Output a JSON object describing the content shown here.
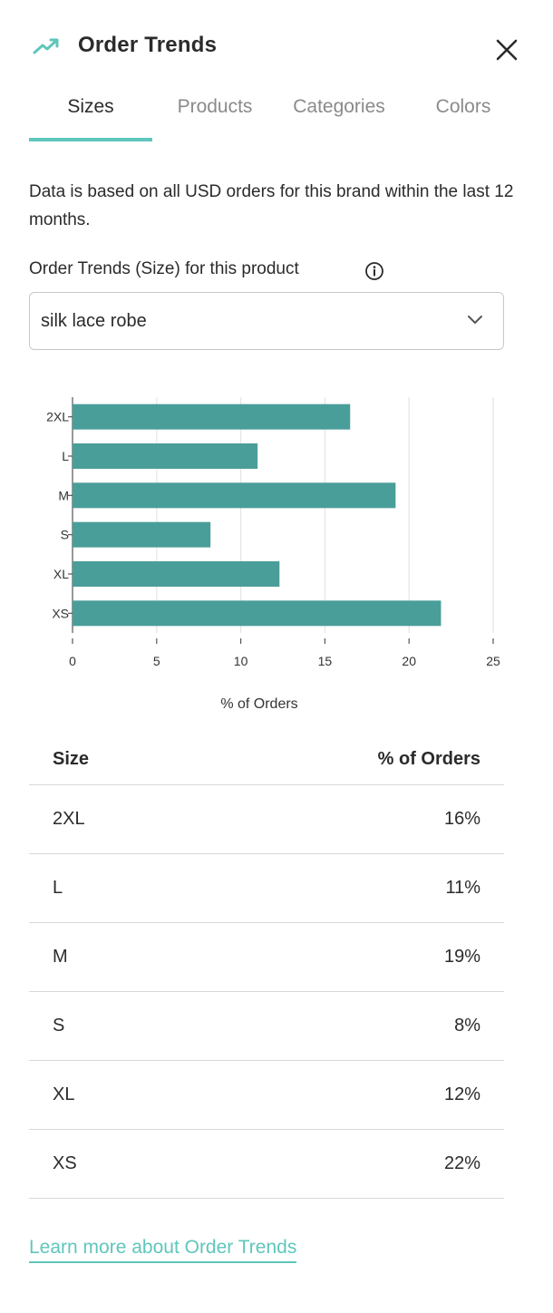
{
  "header": {
    "title": "Order Trends",
    "icon": "trending-up-icon",
    "close_icon": "close-icon"
  },
  "tabs": [
    {
      "label": "Sizes",
      "active": true
    },
    {
      "label": "Products",
      "active": false
    },
    {
      "label": "Categories",
      "active": false
    },
    {
      "label": "Colors",
      "active": false
    }
  ],
  "description": "Data is based on all USD orders for this brand within the last 12 months.",
  "product_select": {
    "label": "Order Trends (Size) for this product",
    "info_icon": "info-icon",
    "value": "silk lace robe",
    "chevron_icon": "chevron-down-icon"
  },
  "chart_data": {
    "type": "bar",
    "orientation": "horizontal",
    "categories": [
      "2XL",
      "L",
      "M",
      "S",
      "XL",
      "XS"
    ],
    "values": [
      16.5,
      11,
      19.2,
      8.2,
      12.3,
      21.9
    ],
    "xlabel": "% of Orders",
    "ylabel": "",
    "xlim": [
      0,
      25
    ],
    "xticks": [
      0,
      5,
      10,
      15,
      20,
      25
    ],
    "grid": true,
    "bar_color": "#4a9e99"
  },
  "table": {
    "headers": {
      "size": "Size",
      "percent": "% of Orders"
    },
    "rows": [
      {
        "size": "2XL",
        "percent": "16%"
      },
      {
        "size": "L",
        "percent": "11%"
      },
      {
        "size": "M",
        "percent": "19%"
      },
      {
        "size": "S",
        "percent": "8%"
      },
      {
        "size": "XL",
        "percent": "12%"
      },
      {
        "size": "XS",
        "percent": "22%"
      }
    ]
  },
  "learn_more": "Learn more about Order Trends",
  "colors": {
    "accent": "#5fc6bc",
    "bar": "#4a9e99",
    "text": "#2b2b2b",
    "muted": "#8a8a8a",
    "divider": "#d8d8d8"
  }
}
